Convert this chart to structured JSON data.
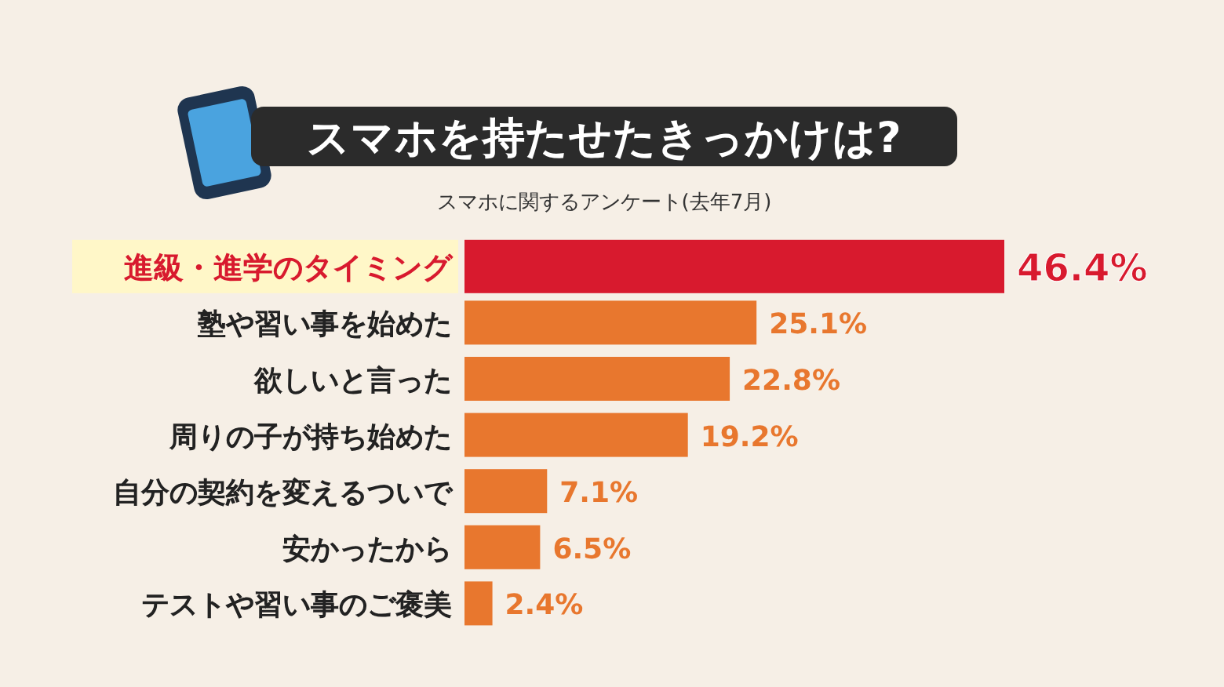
{
  "chart_data": {
    "type": "bar",
    "orientation": "horizontal",
    "title": "スマホを持たせたきっかけは?",
    "subtitle": "スマホに関するアンケート(去年7月)",
    "categories": [
      "進級・進学のタイミング",
      "塾や習い事を始めた",
      "欲しいと言った",
      "周りの子が持ち始めた",
      "自分の契約を変えるついで",
      "安かったから",
      "テストや習い事のご褒美"
    ],
    "values": [
      46.4,
      25.1,
      22.8,
      19.2,
      7.1,
      6.5,
      2.4
    ],
    "colors": [
      "#d81a2e",
      "#e8772e",
      "#e8772e",
      "#e8772e",
      "#e8772e",
      "#e8772e",
      "#e8772e"
    ],
    "value_labels": [
      "46.4%",
      "25.1%",
      "22.8%",
      "19.2%",
      "7.1%",
      "6.5%",
      "2.4%"
    ]
  }
}
